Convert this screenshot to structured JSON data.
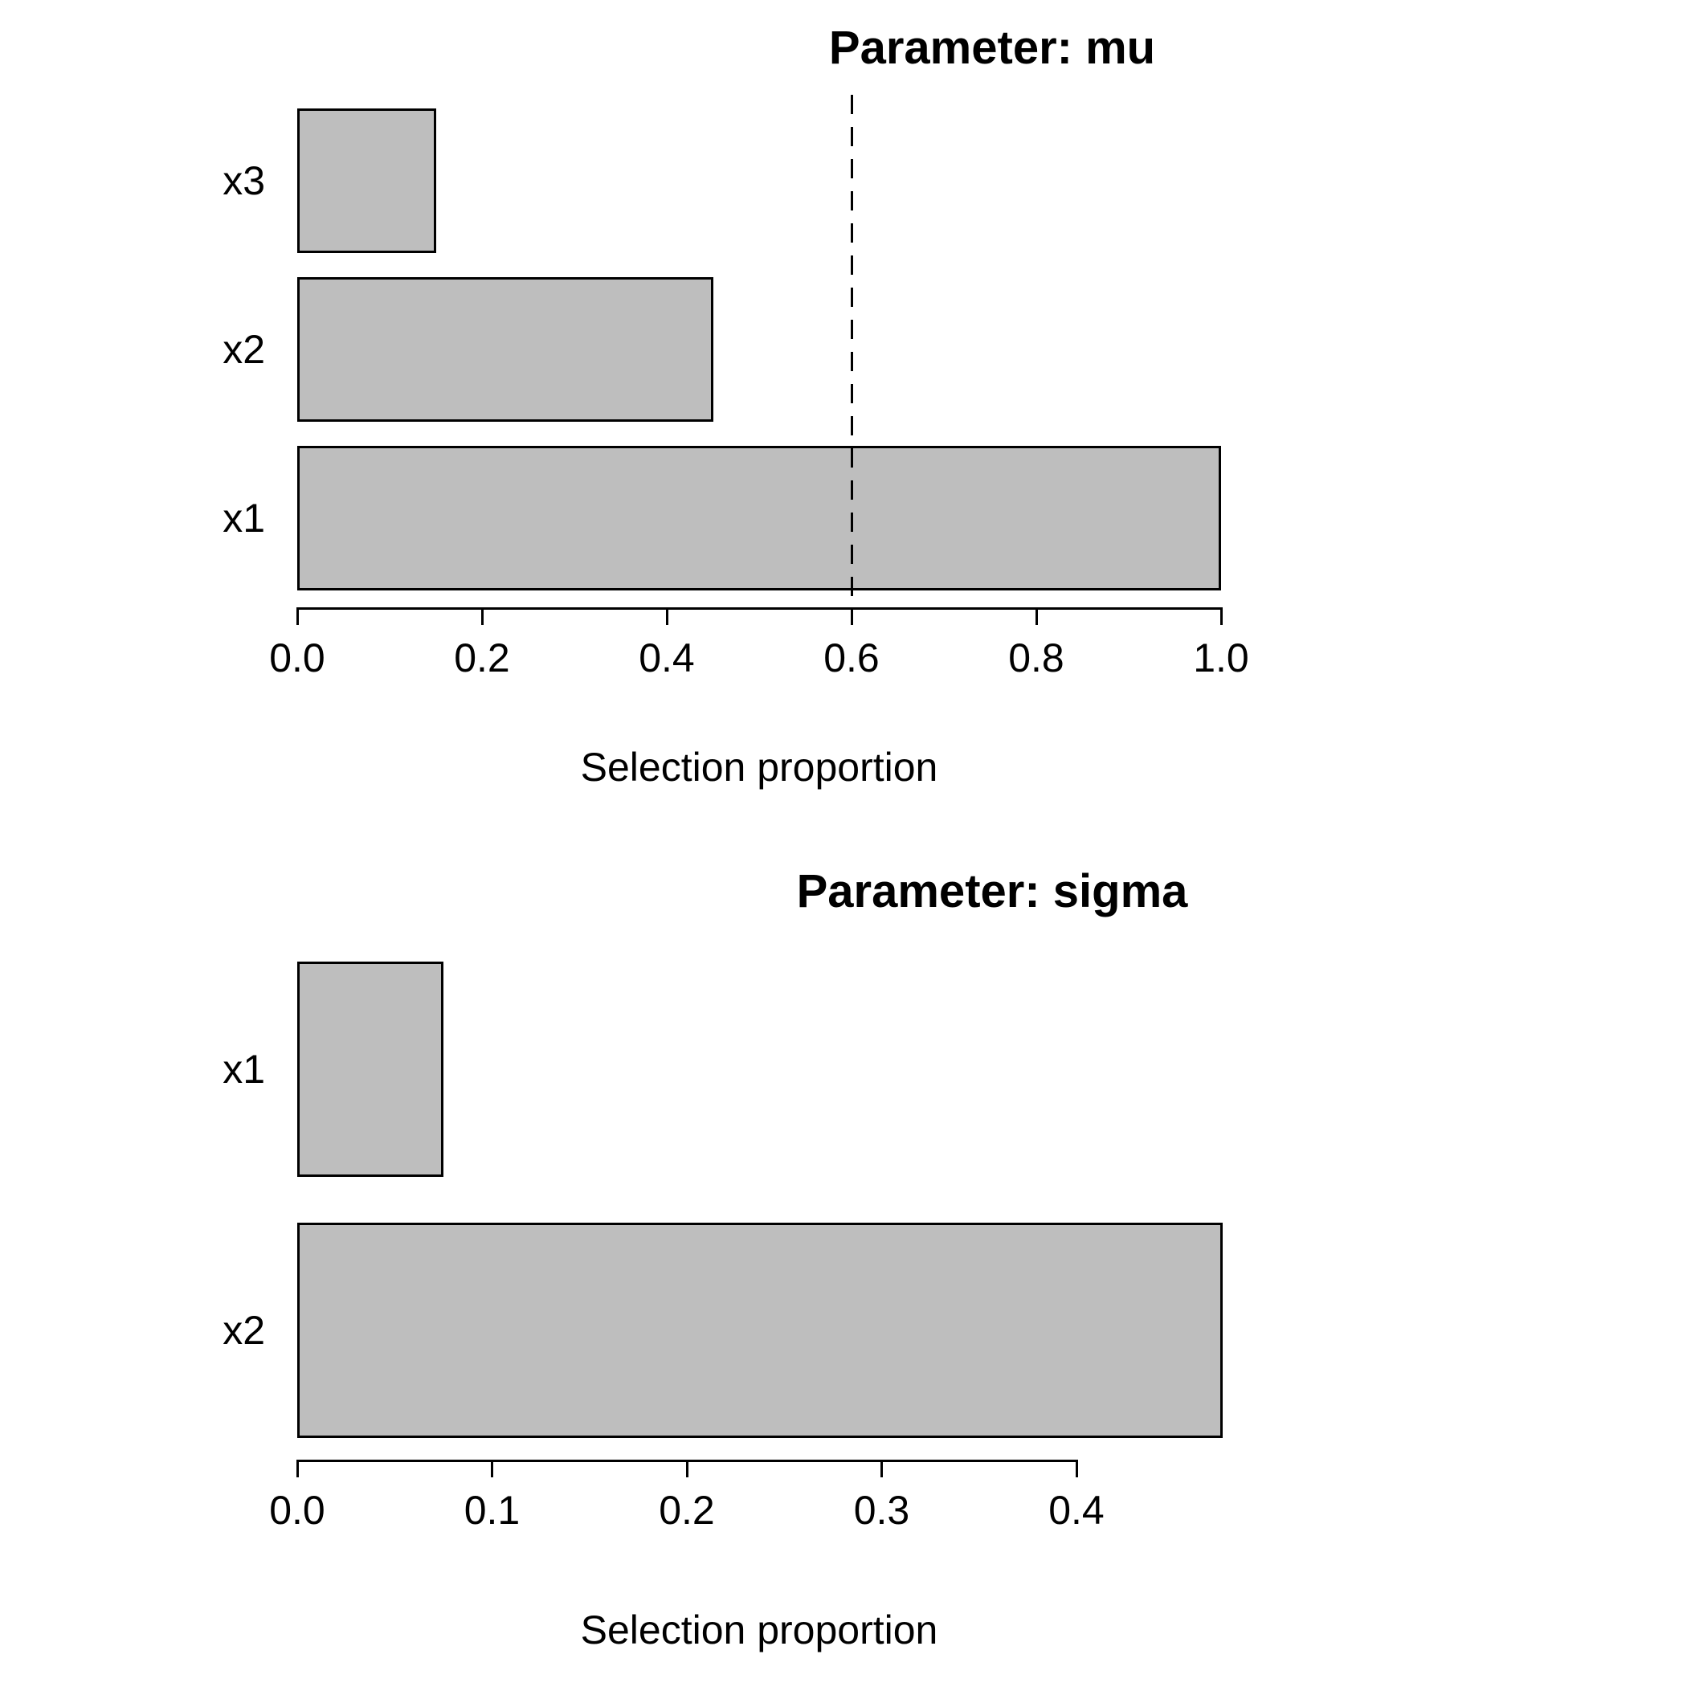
{
  "figure": {
    "background": "#ffffff",
    "bar_fill": "#bebebe",
    "bar_border": "#000000",
    "axis_color": "#000000",
    "text_color": "#000000"
  },
  "chart_data": [
    {
      "type": "bar",
      "orientation": "horizontal",
      "title": "Parameter: mu",
      "xlabel": "Selection proportion",
      "categories": [
        "x3",
        "x2",
        "x1"
      ],
      "values": [
        0.15,
        0.45,
        1.0
      ],
      "xlim": [
        0.0,
        1.0
      ],
      "xticks": [
        0.0,
        0.2,
        0.4,
        0.6,
        0.8,
        1.0
      ],
      "xtick_labels": [
        "0.0",
        "0.2",
        "0.4",
        "0.6",
        "0.8",
        "1.0"
      ],
      "threshold": 0.6,
      "threshold_style": "dashed-vertical-line",
      "grid": false,
      "legend": false
    },
    {
      "type": "bar",
      "orientation": "horizontal",
      "title": "Parameter: sigma",
      "xlabel": "Selection proportion",
      "categories": [
        "x1",
        "x2"
      ],
      "values": [
        0.075,
        0.475
      ],
      "xlim": [
        0.0,
        0.475
      ],
      "xticks": [
        0.0,
        0.1,
        0.2,
        0.3,
        0.4
      ],
      "xtick_labels": [
        "0.0",
        "0.1",
        "0.2",
        "0.3",
        "0.4"
      ],
      "threshold": null,
      "threshold_style": null,
      "grid": false,
      "legend": false
    }
  ]
}
